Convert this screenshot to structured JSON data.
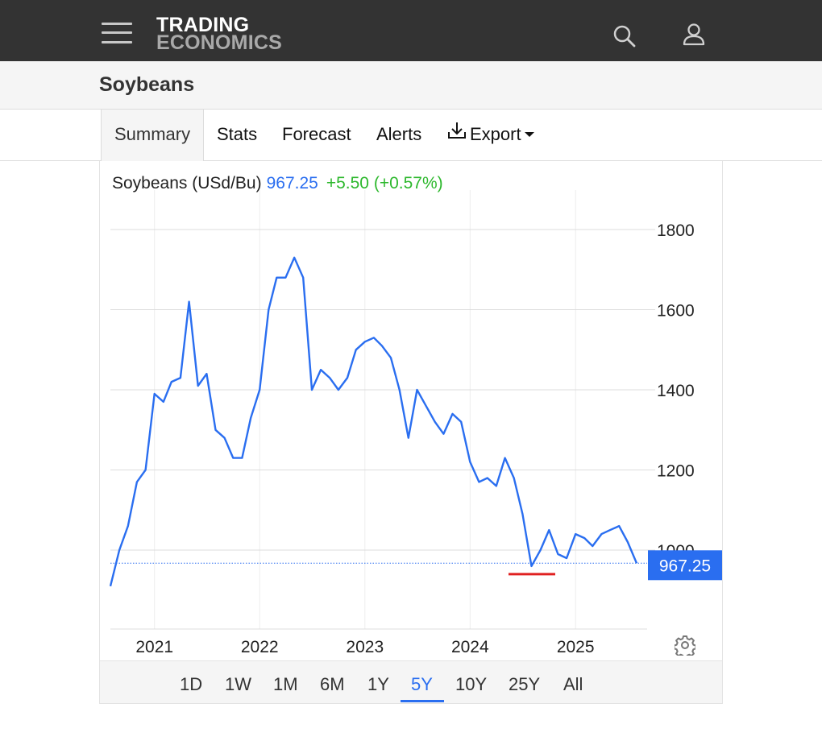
{
  "header": {
    "logo_line1": "TRADING",
    "logo_line2": "ECONOMICS",
    "menu_icon": "hamburger-menu-icon",
    "search_icon": "search-icon",
    "user_icon": "user-icon"
  },
  "page": {
    "title": "Soybeans"
  },
  "tabs": [
    {
      "label": "Summary",
      "active": true
    },
    {
      "label": "Stats"
    },
    {
      "label": "Forecast"
    },
    {
      "label": "Alerts"
    },
    {
      "label": "Export",
      "icon": "download-icon",
      "dropdown": true
    }
  ],
  "quote": {
    "name": "Soybeans (USd/Bu)",
    "price": "967.25",
    "change": "+5.50",
    "change_pct": "(+0.57%)"
  },
  "colors": {
    "line": "#2a6ef0",
    "positive": "#2db82d",
    "low_marker": "#e02020",
    "price_tag": "#2a6ef0",
    "topbar": "#333333"
  },
  "chart_data": {
    "type": "line",
    "title": "Soybeans (USd/Bu)",
    "xlabel": "",
    "ylabel": "",
    "x_ticks": [
      "2021",
      "2022",
      "2023",
      "2024",
      "2025"
    ],
    "y_ticks": [
      "1800",
      "1600",
      "1400",
      "1200",
      "1000"
    ],
    "ylim": [
      800,
      1800
    ],
    "xlim": [
      "2020-08-01",
      "2025-08-01"
    ],
    "grid": true,
    "last_value": "967.25",
    "low_marker_value": 940,
    "series": [
      {
        "values": [
          [
            "2020-08-01",
            910
          ],
          [
            "2020-09-01",
            1000
          ],
          [
            "2020-10-01",
            1060
          ],
          [
            "2020-11-01",
            1170
          ],
          [
            "2020-12-01",
            1200
          ],
          [
            "2021-01-01",
            1390
          ],
          [
            "2021-02-01",
            1370
          ],
          [
            "2021-03-01",
            1420
          ],
          [
            "2021-04-01",
            1430
          ],
          [
            "2021-05-01",
            1620
          ],
          [
            "2021-06-01",
            1410
          ],
          [
            "2021-07-01",
            1440
          ],
          [
            "2021-08-01",
            1300
          ],
          [
            "2021-09-01",
            1280
          ],
          [
            "2021-10-01",
            1230
          ],
          [
            "2021-11-01",
            1230
          ],
          [
            "2021-12-01",
            1330
          ],
          [
            "2022-01-01",
            1400
          ],
          [
            "2022-02-01",
            1600
          ],
          [
            "2022-03-01",
            1680
          ],
          [
            "2022-04-01",
            1680
          ],
          [
            "2022-05-01",
            1730
          ],
          [
            "2022-06-01",
            1680
          ],
          [
            "2022-07-01",
            1400
          ],
          [
            "2022-08-01",
            1450
          ],
          [
            "2022-09-01",
            1430
          ],
          [
            "2022-10-01",
            1400
          ],
          [
            "2022-11-01",
            1430
          ],
          [
            "2022-12-01",
            1500
          ],
          [
            "2023-01-01",
            1520
          ],
          [
            "2023-02-01",
            1530
          ],
          [
            "2023-03-01",
            1510
          ],
          [
            "2023-04-01",
            1480
          ],
          [
            "2023-05-01",
            1400
          ],
          [
            "2023-06-01",
            1280
          ],
          [
            "2023-07-01",
            1400
          ],
          [
            "2023-08-01",
            1360
          ],
          [
            "2023-09-01",
            1320
          ],
          [
            "2023-10-01",
            1290
          ],
          [
            "2023-11-01",
            1340
          ],
          [
            "2023-12-01",
            1320
          ],
          [
            "2024-01-01",
            1220
          ],
          [
            "2024-02-01",
            1170
          ],
          [
            "2024-03-01",
            1180
          ],
          [
            "2024-04-01",
            1160
          ],
          [
            "2024-05-01",
            1230
          ],
          [
            "2024-06-01",
            1180
          ],
          [
            "2024-07-01",
            1090
          ],
          [
            "2024-08-01",
            960
          ],
          [
            "2024-09-01",
            1000
          ],
          [
            "2024-10-01",
            1050
          ],
          [
            "2024-11-01",
            990
          ],
          [
            "2024-12-01",
            980
          ],
          [
            "2025-01-01",
            1040
          ],
          [
            "2025-02-01",
            1030
          ],
          [
            "2025-03-01",
            1010
          ],
          [
            "2025-04-01",
            1040
          ],
          [
            "2025-05-01",
            1050
          ],
          [
            "2025-06-01",
            1060
          ],
          [
            "2025-07-01",
            1020
          ],
          [
            "2025-08-01",
            967.25
          ]
        ]
      }
    ]
  },
  "ranges": [
    {
      "label": "1D"
    },
    {
      "label": "1W"
    },
    {
      "label": "1M"
    },
    {
      "label": "6M"
    },
    {
      "label": "1Y"
    },
    {
      "label": "5Y",
      "active": true
    },
    {
      "label": "10Y"
    },
    {
      "label": "25Y"
    },
    {
      "label": "All"
    }
  ],
  "settings_icon": "gear-icon"
}
